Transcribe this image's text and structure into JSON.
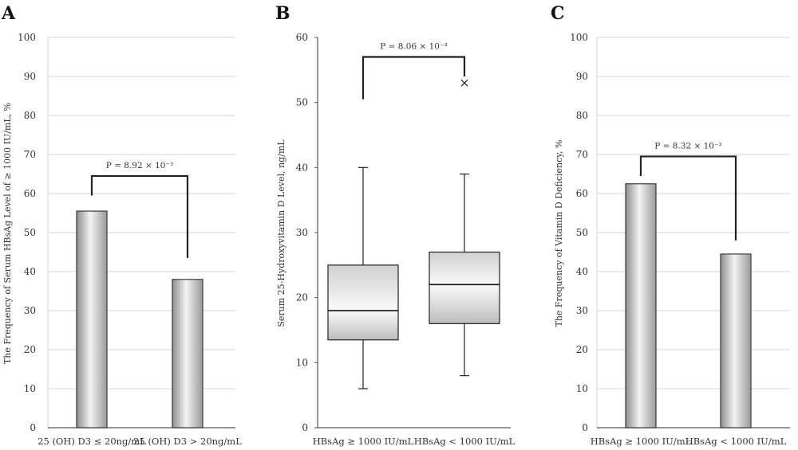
{
  "chart_data": [
    {
      "panel": "A",
      "type": "bar",
      "ylabel": "The Frequency of Serum HBsAg Level of ≥ 1000 IU/mL, %",
      "categories": [
        "25 (OH) D3 ≤ 20ng/mL",
        "25 (OH) D3 > 20ng/mL"
      ],
      "values": [
        55.5,
        38
      ],
      "ylim": [
        0,
        100
      ],
      "yticks": [
        0,
        10,
        20,
        30,
        40,
        50,
        60,
        70,
        80,
        90,
        100
      ],
      "grid": true,
      "annotation": {
        "text": "P = 8.92 × 10⁻³",
        "bracket_y": 64.5,
        "left_end": 59.5,
        "right_end": 43.5
      }
    },
    {
      "panel": "B",
      "type": "box",
      "ylabel": "Serum 25-Hydroxyvitamin D Level, ng/mL",
      "categories": [
        "HBsAg ≥ 1000 IU/mL",
        "HBsAg < 1000 IU/mL"
      ],
      "boxes": [
        {
          "min": 6,
          "q1": 13.5,
          "median": 18,
          "q3": 25,
          "max": 40,
          "outliers": []
        },
        {
          "min": 8,
          "q1": 16,
          "median": 22,
          "q3": 27,
          "max": 39,
          "outliers": [
            53
          ]
        }
      ],
      "ylim": [
        0,
        60
      ],
      "yticks": [
        0,
        10,
        20,
        30,
        40,
        50,
        60
      ],
      "grid": false,
      "annotation": {
        "text": "P = 8.06 × 10⁻³",
        "bracket_y": 57,
        "left_end": 50.5,
        "right_end": 54
      }
    },
    {
      "panel": "C",
      "type": "bar",
      "ylabel": "The Frequency of Vitamin D Deficiency, %",
      "categories": [
        "HBsAg ≥ 1000 IU/mL",
        "HBsAg < 1000 IU/mL"
      ],
      "values": [
        62.5,
        44.5
      ],
      "ylim": [
        0,
        100
      ],
      "yticks": [
        0,
        10,
        20,
        30,
        40,
        50,
        60,
        70,
        80,
        90,
        100
      ],
      "grid": true,
      "annotation": {
        "text": "P = 8.32 × 10⁻³",
        "bracket_y": 69.5,
        "left_end": 64.5,
        "right_end": 48
      }
    }
  ]
}
